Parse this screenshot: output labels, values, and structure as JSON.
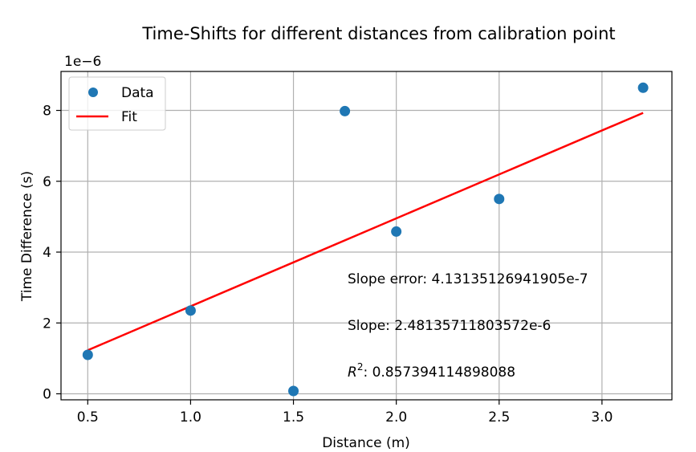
{
  "chart_data": {
    "type": "scatter",
    "title": "Time-Shifts for different distances from calibration point",
    "xlabel": "Distance (m)",
    "ylabel": "Time Difference (s)",
    "y_offset_label": "1e−6",
    "xlim": [
      0.37,
      3.34
    ],
    "ylim": [
      -0.17,
      9.1
    ],
    "xticks": [
      0.5,
      1.0,
      1.5,
      2.0,
      2.5,
      3.0
    ],
    "xtick_labels": [
      "0.5",
      "1.0",
      "1.5",
      "2.0",
      "2.5",
      "3.0"
    ],
    "yticks": [
      0,
      2,
      4,
      6,
      8
    ],
    "ytick_labels": [
      "0",
      "2",
      "4",
      "6",
      "8"
    ],
    "grid": true,
    "legend_position": "upper-left",
    "series": [
      {
        "name": "Data",
        "kind": "scatter",
        "color": "#1f77b4",
        "x": [
          0.5,
          1.0,
          1.5,
          1.75,
          2.0,
          2.5,
          3.2
        ],
        "y": [
          1.1,
          2.35,
          0.08,
          7.98,
          4.58,
          5.5,
          8.64
        ]
      },
      {
        "name": "Fit",
        "kind": "line",
        "color": "#ff0000",
        "x": [
          0.5,
          3.2
        ],
        "y": [
          1.23,
          7.93
        ]
      }
    ],
    "annotations": {
      "slope_error": "Slope error: 4.13135126941905e-7",
      "slope": "Slope: 2.48135711803572e-6",
      "r2_symbol": "R",
      "r2_sup": "2",
      "r2_value": ": 0.857394114898088"
    }
  }
}
